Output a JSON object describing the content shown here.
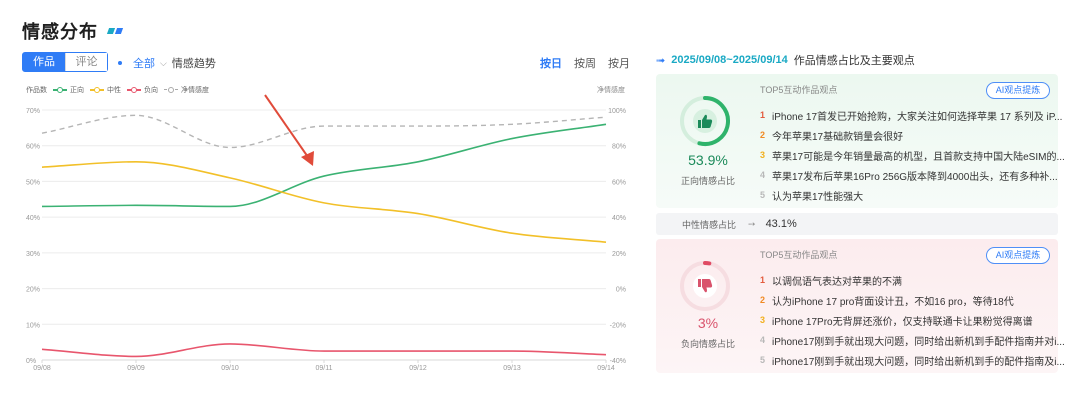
{
  "header": {
    "title": "情感分布"
  },
  "tabs": [
    {
      "label": "作品",
      "active": true
    },
    {
      "label": "评论",
      "active": false
    }
  ],
  "filter": {
    "scope": "全部",
    "trend_label": "情感趋势"
  },
  "period": [
    {
      "label": "按日",
      "active": true
    },
    {
      "label": "按周",
      "active": false
    },
    {
      "label": "按月",
      "active": false
    }
  ],
  "colors": {
    "positive": "#3bb273",
    "neutral": "#f2c029",
    "negative": "#e8566d",
    "net": "#b5b5b5",
    "accent": "#2f7cf6"
  },
  "chart_data": {
    "type": "line",
    "left_axis_title": "作品数",
    "right_axis_title": "净情感度",
    "x": [
      "09/08",
      "09/09",
      "09/10",
      "09/11",
      "09/12",
      "09/13",
      "09/14"
    ],
    "y_left_ticks": [
      "0%",
      "10%",
      "20%",
      "30%",
      "40%",
      "50%",
      "60%",
      "70%"
    ],
    "y_right_ticks": [
      "-40%",
      "-20%",
      "0%",
      "20%",
      "40%",
      "60%",
      "80%",
      "100%"
    ],
    "ylim_left": [
      0,
      70
    ],
    "ylim_right": [
      -40,
      100
    ],
    "grid": true,
    "legend_position": "top-left",
    "series": [
      {
        "name": "正向",
        "axis": "left",
        "color": "#3bb273",
        "style": "solid",
        "values": [
          43,
          43.3,
          43,
          51.5,
          55.5,
          62,
          66
        ]
      },
      {
        "name": "中性",
        "axis": "left",
        "color": "#f2c029",
        "style": "solid",
        "values": [
          54,
          55.5,
          51,
          44,
          41,
          35.5,
          33
        ]
      },
      {
        "name": "负向",
        "axis": "left",
        "color": "#e8566d",
        "style": "solid",
        "values": [
          3,
          1,
          4.5,
          2.5,
          2.5,
          2.5,
          1.5
        ]
      },
      {
        "name": "净情感度",
        "axis": "right",
        "color": "#b5b5b5",
        "style": "dashed",
        "values": [
          87,
          97,
          79,
          91,
          91,
          92,
          96
        ]
      }
    ],
    "annotation": "red-arrow"
  },
  "summary": {
    "date_range": "2025/09/08~2025/09/14",
    "heading_suffix": "作品情感占比及主要观点"
  },
  "positive": {
    "percent": "53.9%",
    "percent_value": 53.9,
    "label": "正向情感占比",
    "icon": "thumbs-up-icon",
    "top5_title": "TOP5互动作品观点",
    "ai_button": "AI观点提炼",
    "views": [
      {
        "rank": "1",
        "text": "iPhone 17首发已开始抢购，大家关注如何选择苹果 17 系列及 iP..."
      },
      {
        "rank": "2",
        "text": "今年苹果17基础款销量会很好"
      },
      {
        "rank": "3",
        "text": "苹果17可能是今年销量最高的机型，且首款支持中国大陆eSIM的..."
      },
      {
        "rank": "4",
        "text": "苹果17发布后苹果16Pro 256G版本降到4000出头，还有多种补..."
      },
      {
        "rank": "5",
        "text": "认为苹果17性能强大"
      }
    ]
  },
  "neutral": {
    "label": "中性情感占比",
    "percent": "43.1%"
  },
  "negative": {
    "percent": "3%",
    "percent_value": 3,
    "label": "负向情感占比",
    "icon": "thumbs-down-icon",
    "top5_title": "TOP5互动作品观点",
    "ai_button": "AI观点提炼",
    "views": [
      {
        "rank": "1",
        "text": "以调侃语气表达对苹果的不满"
      },
      {
        "rank": "2",
        "text": "认为iPhone 17 pro背面设计丑，不如16 pro，等待18代"
      },
      {
        "rank": "3",
        "text": "iPhone 17Pro无背屏还涨价，仅支持联通卡让果粉觉得离谱"
      },
      {
        "rank": "4",
        "text": "iPhone17刚到手就出现大问题，同时给出新机到手配件指南并对i..."
      },
      {
        "rank": "5",
        "text": "iPhone17刚到手就出现大问题，同时给出新机到手的配件指南及i..."
      }
    ]
  }
}
